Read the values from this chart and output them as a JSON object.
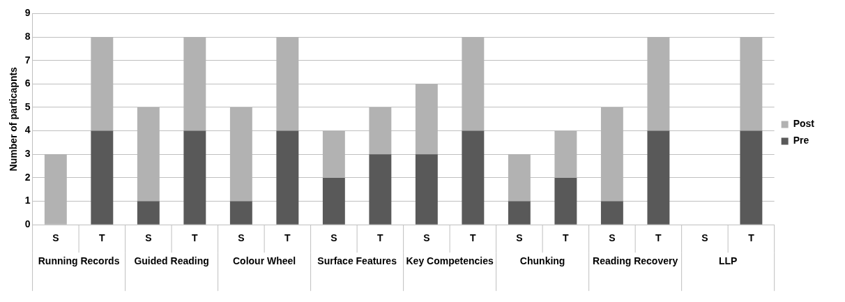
{
  "chart_data": {
    "type": "bar",
    "stacked": true,
    "ylabel": "Number of particapnts",
    "categories": [
      "S",
      "T",
      "S",
      "T",
      "S",
      "T",
      "S",
      "T",
      "S",
      "T",
      "S",
      "T",
      "S",
      "T",
      "S",
      "T"
    ],
    "annotations": [
      "Running Records",
      "Guided Reading",
      "Colour Wheel",
      "Surface Features",
      "Key Competencies",
      "Chunking",
      "Reading Recovery",
      "LLP"
    ],
    "series": [
      {
        "name": "Pre",
        "color": "#595959",
        "values": [
          0,
          4,
          1,
          4,
          1,
          4,
          2,
          3,
          3,
          4,
          1,
          2,
          1,
          4,
          0,
          4
        ]
      },
      {
        "name": "Post",
        "color": "#b2b2b2",
        "values": [
          3,
          4,
          4,
          4,
          4,
          4,
          2,
          2,
          3,
          4,
          2,
          2,
          4,
          4,
          0,
          4
        ]
      }
    ],
    "ylim": [
      0,
      9
    ],
    "yticks": [
      0,
      1,
      2,
      3,
      4,
      5,
      6,
      7,
      8,
      9
    ],
    "grid": "y",
    "legend": "right"
  }
}
